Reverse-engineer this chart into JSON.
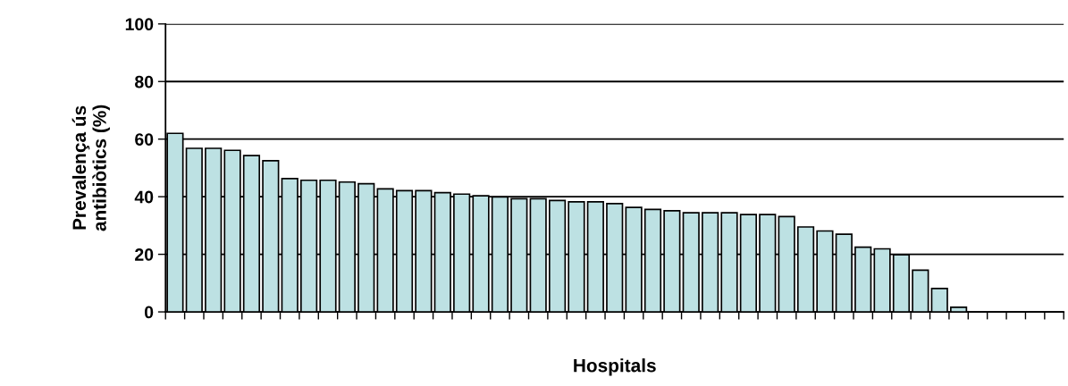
{
  "chart_data": {
    "type": "bar",
    "xlabel": "Hospitals",
    "ylabel": "Prevalença ús\nantibiòtics (%)",
    "categories": [
      null,
      null,
      null,
      null,
      null,
      null,
      null,
      null,
      null,
      null,
      null,
      null,
      null,
      null,
      null,
      null,
      null,
      null,
      null,
      null,
      null,
      null,
      null,
      null,
      null,
      null,
      null,
      null,
      null,
      null,
      null,
      null,
      null,
      null,
      null,
      null,
      null,
      null,
      null,
      null,
      null,
      null,
      null,
      null,
      null,
      null,
      null
    ],
    "values": [
      62,
      56.8,
      56.8,
      56.1,
      54.3,
      52.5,
      46.3,
      45.7,
      45.7,
      45.1,
      44.5,
      42.7,
      42.1,
      42.1,
      41.4,
      40.9,
      40.3,
      39.9,
      39.3,
      39.3,
      38.7,
      38.2,
      38.2,
      37.6,
      36.3,
      35.6,
      35.1,
      34.4,
      34.4,
      34.4,
      33.8,
      33.8,
      33.1,
      29.5,
      28.1,
      27,
      22.5,
      21.9,
      19.8,
      14.5,
      8.1,
      1.6,
      null,
      null,
      null,
      null,
      null
    ],
    "color": "#bde1e3",
    "ylim": [
      0,
      100
    ],
    "yticks": [
      0,
      20,
      40,
      60,
      80,
      100
    ],
    "grid": "y",
    "legend": false
  }
}
